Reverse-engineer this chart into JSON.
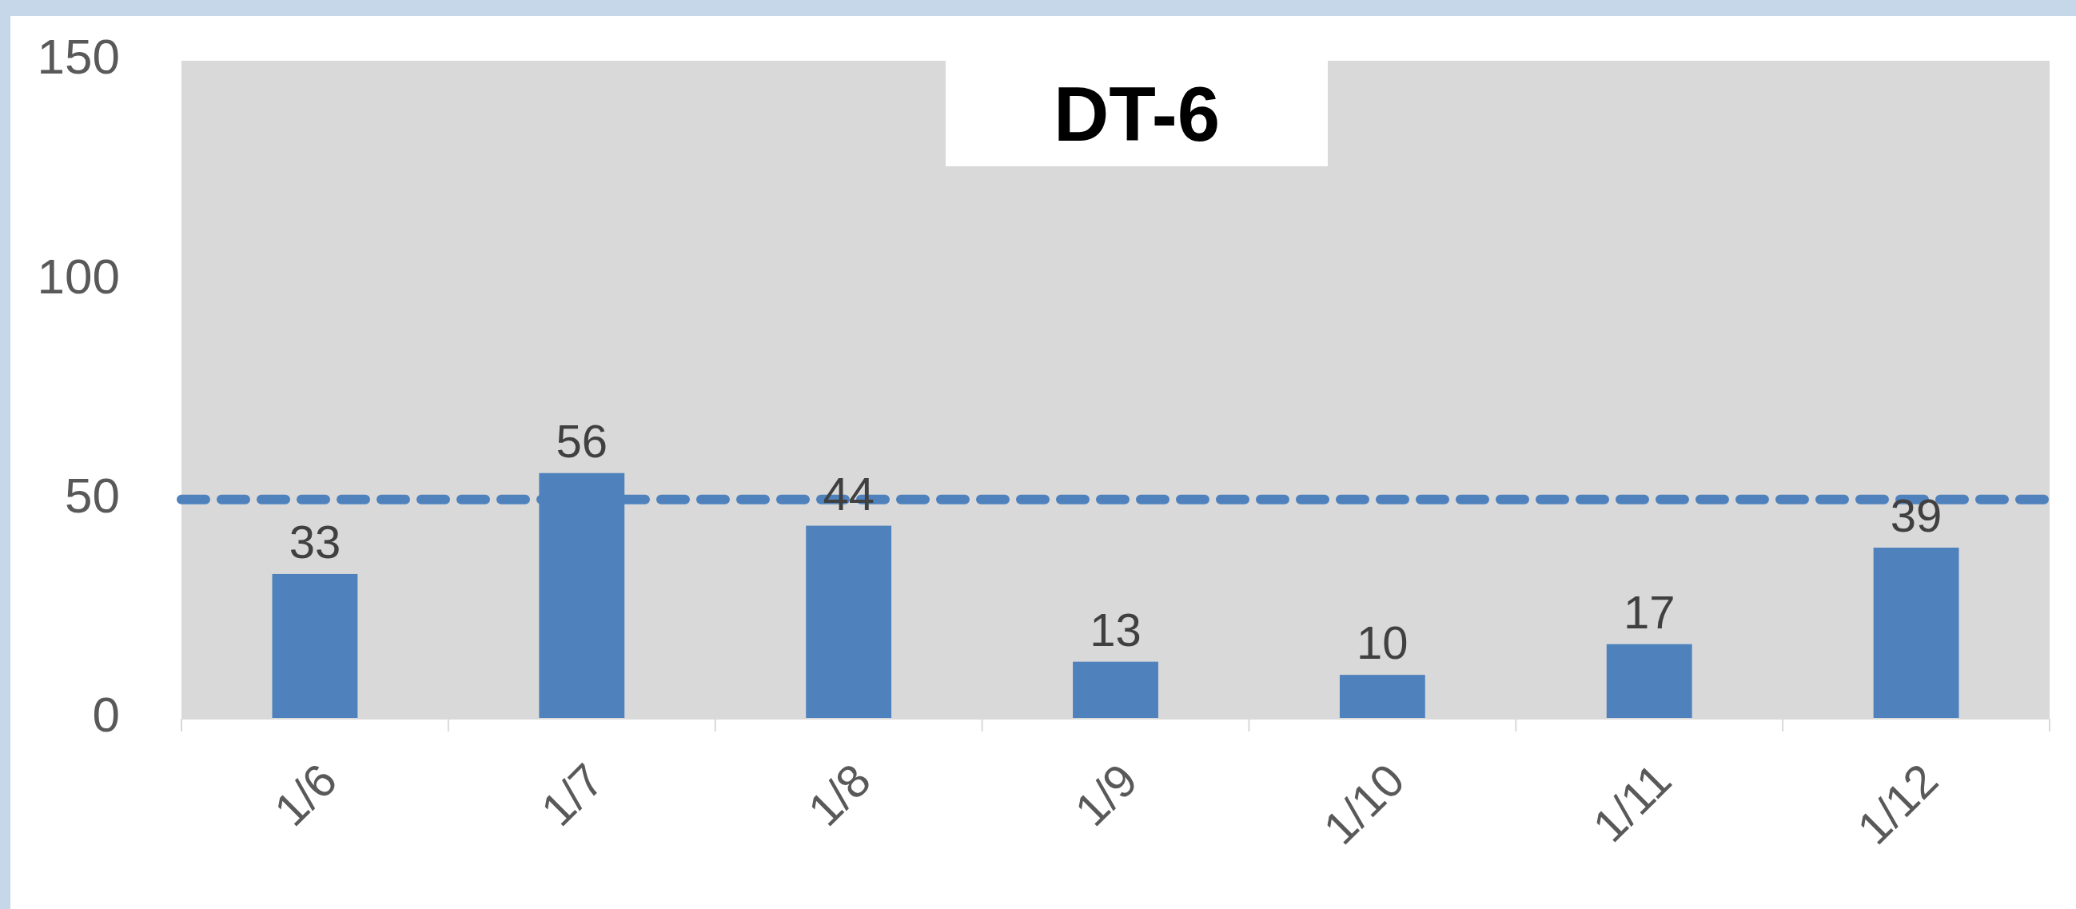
{
  "chart_data": {
    "type": "bar",
    "title": "DT-6",
    "categories": [
      "1/6",
      "1/7",
      "1/8",
      "1/9",
      "1/10",
      "1/11",
      "1/12"
    ],
    "values": [
      33,
      56,
      44,
      13,
      10,
      17,
      39
    ],
    "color": "#4f81bd",
    "ylim": [
      0,
      150
    ],
    "yticks": [
      0,
      50,
      100,
      150
    ],
    "grid": false,
    "data_labels": true,
    "ref_lines": [
      {
        "axis": "y",
        "value": 50,
        "label": null,
        "color": "#4f81bd",
        "line_style": "dashed"
      }
    ]
  }
}
